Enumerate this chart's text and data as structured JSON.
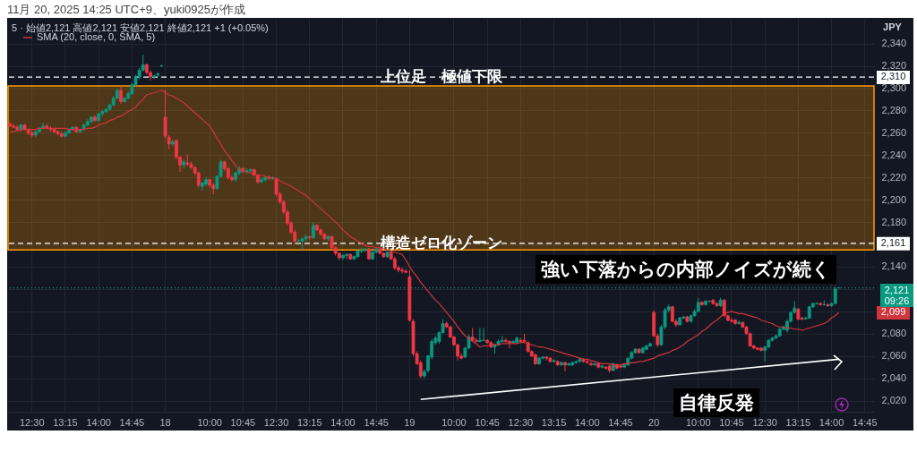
{
  "chart_data": {
    "type": "candlestick",
    "title": "11月 20, 2025 14:25 UTC+9、yuki0925が作成",
    "subtitle": "5 · 始値2,121 高値2,121 安値2,121 終値2,121 +1 (+0.05%)",
    "ylabel": "JPY",
    "categories": [
      null,
      null,
      null,
      null,
      null,
      null,
      "12:30",
      null,
      null,
      null,
      null,
      null,
      null,
      null,
      null,
      "13:15",
      null,
      null,
      null,
      null,
      null,
      null,
      null,
      null,
      "14:00",
      null,
      null,
      null,
      null,
      null,
      null,
      null,
      null,
      "14:45",
      null,
      null,
      null,
      null,
      null,
      null,
      null,
      null,
      "18",
      null,
      null,
      null,
      null,
      null,
      null,
      null,
      null,
      null,
      null,
      null,
      "10:00",
      null,
      null,
      null,
      null,
      null,
      null,
      null,
      null,
      "10:45",
      null,
      null,
      null,
      null,
      null,
      null,
      null,
      null,
      "12:30",
      null,
      null,
      null,
      null,
      null,
      null,
      null,
      null,
      "13:15",
      null,
      null,
      null,
      null,
      null,
      null,
      null,
      null,
      "14:00",
      null,
      null,
      null,
      null,
      null,
      null,
      null,
      null,
      "14:45",
      null,
      null,
      null,
      null,
      null,
      null,
      null,
      null,
      "19",
      null,
      null,
      null,
      null,
      null,
      null,
      null,
      null,
      null,
      null,
      null,
      "10:00",
      null,
      null,
      null,
      null,
      null,
      null,
      null,
      null,
      "10:45",
      null,
      null,
      null,
      null,
      null,
      null,
      null,
      null,
      "12:30",
      null,
      null,
      null,
      null,
      null,
      null,
      null,
      null,
      "13:15",
      null,
      null,
      null,
      null,
      null,
      null,
      null,
      null,
      "14:00",
      null,
      null,
      null,
      null,
      null,
      null,
      null,
      null,
      "14:45",
      null,
      null,
      null,
      null,
      null,
      null,
      null,
      null,
      "20",
      null,
      null,
      null,
      null,
      null,
      null,
      null,
      null,
      null,
      null,
      null,
      "10:00",
      null,
      null,
      null,
      null,
      null,
      null,
      null,
      null,
      "10:45",
      null,
      null,
      null,
      null,
      null,
      null,
      null,
      null,
      "12:30",
      null,
      null,
      null,
      null,
      null,
      null,
      null,
      null,
      "13:15",
      null,
      null,
      null,
      null,
      null,
      null,
      null,
      null,
      "14:00",
      null,
      null,
      null,
      null,
      null,
      null,
      null,
      null,
      "14:45",
      null,
      null
    ],
    "ohlc": [
      [
        2268,
        2270,
        2265,
        2266
      ],
      [
        2266,
        2268,
        2264,
        2265
      ],
      [
        2265,
        2267,
        2262,
        2263
      ],
      [
        2263,
        2268,
        2262,
        2267
      ],
      [
        2267,
        2268,
        2262,
        2263
      ],
      [
        2263,
        2264,
        2258,
        2260
      ],
      [
        2260,
        2262,
        2256,
        2258
      ],
      [
        2258,
        2262,
        2256,
        2261
      ],
      [
        2261,
        2265,
        2260,
        2264
      ],
      [
        2264,
        2269,
        2263,
        2266
      ],
      [
        2266,
        2268,
        2263,
        2264
      ],
      [
        2264,
        2266,
        2261,
        2263
      ],
      [
        2263,
        2264,
        2260,
        2261
      ],
      [
        2261,
        2262,
        2258,
        2259
      ],
      [
        2259,
        2261,
        2256,
        2257
      ],
      [
        2257,
        2261,
        2256,
        2260
      ],
      [
        2260,
        2264,
        2259,
        2263
      ],
      [
        2263,
        2266,
        2262,
        2265
      ],
      [
        2265,
        2266,
        2260,
        2261
      ],
      [
        2261,
        2264,
        2260,
        2263
      ],
      [
        2263,
        2268,
        2262,
        2267
      ],
      [
        2267,
        2272,
        2266,
        2270
      ],
      [
        2270,
        2275,
        2269,
        2274
      ],
      [
        2274,
        2276,
        2270,
        2271
      ],
      [
        2271,
        2278,
        2270,
        2277
      ],
      [
        2277,
        2280,
        2275,
        2279
      ],
      [
        2279,
        2282,
        2278,
        2281
      ],
      [
        2281,
        2286,
        2280,
        2285
      ],
      [
        2285,
        2293,
        2284,
        2291
      ],
      [
        2291,
        2300,
        2290,
        2298
      ],
      [
        2298,
        2302,
        2286,
        2288
      ],
      [
        2288,
        2292,
        2287,
        2291
      ],
      [
        2291,
        2297,
        2290,
        2295
      ],
      [
        2295,
        2305,
        2294,
        2303
      ],
      [
        2303,
        2312,
        2302,
        2310
      ],
      [
        2310,
        2318,
        2308,
        2316
      ],
      [
        2316,
        2330,
        2315,
        2321
      ],
      [
        2321,
        2322,
        2312,
        2314
      ],
      [
        2314,
        2316,
        2307,
        2310
      ],
      [
        2310,
        2312,
        2308,
        2311
      ],
      [
        2312,
        2314,
        2310,
        2313
      ],
      [
        2320,
        2321,
        2319,
        2320
      ],
      [
        2274,
        2298,
        2255,
        2257
      ],
      [
        2256,
        2258,
        2245,
        2250
      ],
      [
        2250,
        2254,
        2248,
        2252
      ],
      [
        2253,
        2254,
        2236,
        2238
      ],
      [
        2238,
        2239,
        2225,
        2231
      ],
      [
        2231,
        2236,
        2228,
        2234
      ],
      [
        2233,
        2241,
        2230,
        2232
      ],
      [
        2232,
        2234,
        2228,
        2229
      ],
      [
        2229,
        2230,
        2222,
        2224
      ],
      [
        2224,
        2225,
        2211,
        2213
      ],
      [
        2212,
        2216,
        2208,
        2215
      ],
      [
        2214,
        2220,
        2212,
        2218
      ],
      [
        2218,
        2219,
        2211,
        2213
      ],
      [
        2213,
        2215,
        2205,
        2210
      ],
      [
        2210,
        2222,
        2209,
        2221
      ],
      [
        2221,
        2236,
        2220,
        2234
      ],
      [
        2234,
        2235,
        2226,
        2228
      ],
      [
        2228,
        2229,
        2218,
        2220
      ],
      [
        2220,
        2222,
        2216,
        2218
      ],
      [
        2218,
        2225,
        2216,
        2224
      ],
      [
        2224,
        2230,
        2222,
        2228
      ],
      [
        2228,
        2229,
        2224,
        2225
      ],
      [
        2225,
        2228,
        2223,
        2226
      ],
      [
        2226,
        2228,
        2224,
        2227
      ],
      [
        2227,
        2228,
        2221,
        2222
      ],
      [
        2222,
        2223,
        2214,
        2216
      ],
      [
        2216,
        2220,
        2215,
        2218
      ],
      [
        2218,
        2221,
        2216,
        2220
      ],
      [
        2220,
        2222,
        2218,
        2219
      ],
      [
        2219,
        2221,
        2218,
        2220
      ],
      [
        2219,
        2220,
        2203,
        2205
      ],
      [
        2205,
        2207,
        2196,
        2198
      ],
      [
        2198,
        2200,
        2187,
        2189
      ],
      [
        2189,
        2191,
        2177,
        2179
      ],
      [
        2179,
        2181,
        2169,
        2171
      ],
      [
        2171,
        2173,
        2160,
        2163
      ],
      [
        2163,
        2165,
        2161,
        2163
      ],
      [
        2163,
        2166,
        2155,
        2165
      ],
      [
        2165,
        2169,
        2163,
        2167
      ],
      [
        2167,
        2168,
        2164,
        2166
      ],
      [
        2166,
        2180,
        2165,
        2177
      ],
      [
        2177,
        2178,
        2172,
        2173
      ],
      [
        2173,
        2174,
        2168,
        2169
      ],
      [
        2169,
        2170,
        2164,
        2165
      ],
      [
        2165,
        2168,
        2163,
        2167
      ],
      [
        2167,
        2168,
        2155,
        2157
      ],
      [
        2157,
        2158,
        2150,
        2152
      ],
      [
        2152,
        2153,
        2146,
        2148
      ],
      [
        2148,
        2151,
        2146,
        2150
      ],
      [
        2150,
        2152,
        2147,
        2151
      ],
      [
        2151,
        2152,
        2146,
        2147
      ],
      [
        2147,
        2150,
        2146,
        2149
      ],
      [
        2149,
        2155,
        2148,
        2154
      ],
      [
        2154,
        2157,
        2152,
        2155
      ],
      [
        2155,
        2157,
        2153,
        2156
      ],
      [
        2156,
        2157,
        2146,
        2147
      ],
      [
        2147,
        2154,
        2146,
        2153
      ],
      [
        2153,
        2157,
        2152,
        2156
      ],
      [
        2156,
        2158,
        2151,
        2152
      ],
      [
        2152,
        2153,
        2148,
        2149
      ],
      [
        2149,
        2154,
        2148,
        2153
      ],
      [
        2153,
        2154,
        2146,
        2147
      ],
      [
        2147,
        2149,
        2137,
        2139
      ],
      [
        2139,
        2141,
        2135,
        2137
      ],
      [
        2137,
        2139,
        2134,
        2136
      ],
      [
        2136,
        2138,
        2134,
        2135
      ],
      [
        2131,
        2137,
        2091,
        2092
      ],
      [
        2091,
        2093,
        2060,
        2062
      ],
      [
        2062,
        2064,
        2052,
        2053
      ],
      [
        2054,
        2056,
        2040,
        2042
      ],
      [
        2042,
        2048,
        2040,
        2046
      ],
      [
        2047,
        2061,
        2045,
        2060
      ],
      [
        2059,
        2075,
        2057,
        2073
      ],
      [
        2072,
        2078,
        2070,
        2076
      ],
      [
        2073,
        2082,
        2071,
        2081
      ],
      [
        2081,
        2093,
        2080,
        2089
      ],
      [
        2089,
        2091,
        2085,
        2086
      ],
      [
        2086,
        2087,
        2076,
        2077
      ],
      [
        2077,
        2078,
        2069,
        2070
      ],
      [
        2070,
        2071,
        2056,
        2060
      ],
      [
        2060,
        2062,
        2057,
        2058
      ],
      [
        2059,
        2068,
        2058,
        2067
      ],
      [
        2067,
        2079,
        2066,
        2077
      ],
      [
        2077,
        2085,
        2073,
        2074
      ],
      [
        2074,
        2076,
        2072,
        2073
      ],
      [
        2073,
        2085,
        2072,
        2074
      ],
      [
        2074,
        2085,
        2073,
        2074
      ],
      [
        2074,
        2075,
        2071,
        2072
      ],
      [
        2072,
        2073,
        2067,
        2068
      ],
      [
        2068,
        2071,
        2062,
        2070
      ],
      [
        2070,
        2075,
        2069,
        2073
      ],
      [
        2073,
        2078,
        2072,
        2074
      ],
      [
        2074,
        2076,
        2072,
        2073
      ],
      [
        2073,
        2074,
        2067,
        2072
      ],
      [
        2072,
        2074,
        2071,
        2073
      ],
      [
        2072,
        2077,
        2071,
        2076
      ],
      [
        2074,
        2076,
        2072,
        2073
      ],
      [
        2074,
        2080,
        2072,
        2073
      ],
      [
        2072,
        2073,
        2063,
        2064
      ],
      [
        2064,
        2065,
        2059,
        2060
      ],
      [
        2061,
        2062,
        2052,
        2053
      ],
      [
        2053,
        2059,
        2052,
        2058
      ],
      [
        2058,
        2060,
        2057,
        2059
      ],
      [
        2059,
        2060,
        2056,
        2058
      ],
      [
        2058,
        2059,
        2054,
        2055
      ],
      [
        2055,
        2057,
        2054,
        2056
      ],
      [
        2055,
        2056,
        2051,
        2052
      ],
      [
        2052,
        2055,
        2051,
        2054
      ],
      [
        2054,
        2055,
        2046,
        2052
      ],
      [
        2052,
        2054,
        2051,
        2053
      ],
      [
        2052,
        2055,
        2051,
        2054
      ],
      [
        2054,
        2056,
        2053,
        2055
      ],
      [
        2055,
        2058,
        2054,
        2057
      ],
      [
        2057,
        2058,
        2054,
        2055
      ],
      [
        2055,
        2056,
        2053,
        2054
      ],
      [
        2053,
        2055,
        2051,
        2052
      ],
      [
        2052,
        2054,
        2051,
        2053
      ],
      [
        2053,
        2054,
        2049,
        2050
      ],
      [
        2050,
        2052,
        2049,
        2051
      ],
      [
        2050,
        2051,
        2048,
        2049
      ],
      [
        2051,
        2052,
        2045,
        2047
      ],
      [
        2047,
        2054,
        2046,
        2053
      ],
      [
        2052,
        2053,
        2048,
        2049
      ],
      [
        2051,
        2052,
        2049,
        2050
      ],
      [
        2050,
        2053,
        2049,
        2052
      ],
      [
        2052,
        2059,
        2051,
        2058
      ],
      [
        2058,
        2064,
        2057,
        2063
      ],
      [
        2063,
        2067,
        2062,
        2066
      ],
      [
        2066,
        2067,
        2062,
        2063
      ],
      [
        2063,
        2068,
        2062,
        2067
      ],
      [
        2066,
        2070,
        2065,
        2069
      ],
      [
        2069,
        2072,
        2068,
        2071
      ],
      [
        2099,
        2101,
        2077,
        2078
      ],
      [
        2078,
        2080,
        2068,
        2070
      ],
      [
        2070,
        2088,
        2069,
        2086
      ],
      [
        2086,
        2103,
        2084,
        2101
      ],
      [
        2101,
        2106,
        2099,
        2104
      ],
      [
        2104,
        2105,
        2090,
        2091
      ],
      [
        2091,
        2093,
        2086,
        2088
      ],
      [
        2088,
        2095,
        2087,
        2094
      ],
      [
        2094,
        2096,
        2093,
        2095
      ],
      [
        2095,
        2096,
        2090,
        2091
      ],
      [
        2091,
        2097,
        2090,
        2096
      ],
      [
        2096,
        2102,
        2095,
        2100
      ],
      [
        2100,
        2112,
        2099,
        2108
      ],
      [
        2108,
        2109,
        2105,
        2106
      ],
      [
        2106,
        2110,
        2105,
        2109
      ],
      [
        2109,
        2110,
        2108,
        2109
      ],
      [
        2110,
        2111,
        2106,
        2107
      ],
      [
        2107,
        2108,
        2104,
        2105
      ],
      [
        2105,
        2112,
        2104,
        2110
      ],
      [
        2110,
        2111,
        2095,
        2096
      ],
      [
        2096,
        2097,
        2091,
        2092
      ],
      [
        2092,
        2094,
        2090,
        2091
      ],
      [
        2092,
        2093,
        2088,
        2089
      ],
      [
        2089,
        2092,
        2088,
        2090
      ],
      [
        2090,
        2091,
        2085,
        2086
      ],
      [
        2086,
        2087,
        2079,
        2080
      ],
      [
        2080,
        2081,
        2068,
        2069
      ],
      [
        2069,
        2070,
        2066,
        2067
      ],
      [
        2067,
        2068,
        2065,
        2066
      ],
      [
        2067,
        2068,
        2064,
        2065
      ],
      [
        2065,
        2069,
        2055,
        2068
      ],
      [
        2068,
        2075,
        2067,
        2074
      ],
      [
        2074,
        2077,
        2073,
        2076
      ],
      [
        2076,
        2079,
        2075,
        2078
      ],
      [
        2078,
        2085,
        2077,
        2084
      ],
      [
        2084,
        2087,
        2083,
        2086
      ],
      [
        2083,
        2093,
        2081,
        2091
      ],
      [
        2091,
        2100,
        2090,
        2099
      ],
      [
        2099,
        2109,
        2098,
        2103
      ],
      [
        2102,
        2103,
        2092,
        2093
      ],
      [
        2094,
        2095,
        2092,
        2093
      ],
      [
        2093,
        2095,
        2093,
        2094
      ],
      [
        2094,
        2105,
        2093,
        2104
      ],
      [
        2104,
        2108,
        2103,
        2107
      ],
      [
        2107,
        2108,
        2106,
        2107
      ],
      [
        2107,
        2108,
        2105,
        2106
      ],
      [
        2106,
        2110,
        2105,
        2106
      ],
      [
        2106,
        2107,
        2104,
        2105
      ],
      [
        2105,
        2108,
        2104,
        2107
      ],
      [
        2107,
        2122,
        2106,
        2120
      ],
      [
        2121,
        2121,
        2121,
        2121
      ],
      null,
      null,
      null,
      null,
      null,
      null,
      null,
      null,
      null
    ],
    "series": [
      {
        "name": "SMA (20, close, 0, SMA, 5)",
        "type": "line",
        "color": "#d0343c",
        "values": [
          2261,
          2261,
          2262,
          2262,
          2263,
          2263,
          2263,
          2263,
          2264,
          2264,
          2264,
          2264,
          2264,
          2264,
          2264,
          2264,
          2263,
          2263,
          2263,
          2263,
          2263,
          2264,
          2264,
          2265,
          2267,
          2268,
          2269,
          2271,
          2272,
          2274,
          2275,
          2277,
          2279,
          2281,
          2283,
          2287,
          2290,
          2294,
          2295,
          2296,
          2297,
          2298,
          2296,
          2294,
          2293,
          2291,
          2289,
          2287,
          2284,
          2281,
          2278,
          2275,
          2272,
          2269,
          2266,
          2261,
          2255,
          2250,
          2244,
          2240,
          2235,
          2231,
          2227,
          2226,
          2225,
          2224,
          2223,
          2222,
          2222,
          2221,
          2220,
          2220,
          2219,
          2217,
          2215,
          2214,
          2212,
          2210,
          2208,
          2206,
          2204,
          2201,
          2198,
          2195,
          2192,
          2189,
          2186,
          2183,
          2180,
          2177,
          2173,
          2170,
          2167,
          2165,
          2163,
          2161,
          2159,
          2158,
          2158,
          2157,
          2157,
          2156,
          2155,
          2154,
          2153,
          2152,
          2151,
          2146,
          2140,
          2135,
          2131,
          2126,
          2122,
          2118,
          2114,
          2110,
          2107,
          2103,
          2099,
          2095,
          2091,
          2086,
          2082,
          2078,
          2076,
          2073,
          2071,
          2068,
          2069,
          2069,
          2070,
          2070,
          2070,
          2071,
          2071,
          2071,
          2071,
          2071,
          2072,
          2072,
          2071,
          2070,
          2069,
          2068,
          2068,
          2067,
          2066,
          2065,
          2064,
          2063,
          2062,
          2061,
          2060,
          2059,
          2058,
          2057,
          2057,
          2056,
          2055,
          2054,
          2053,
          2053,
          2053,
          2052,
          2052,
          2052,
          2053,
          2053,
          2054,
          2054,
          2055,
          2055,
          2056,
          2057,
          2058,
          2060,
          2061,
          2062,
          2063,
          2065,
          2066,
          2068,
          2070,
          2073,
          2075,
          2077,
          2079,
          2082,
          2084,
          2087,
          2090,
          2092,
          2095,
          2098,
          2099,
          2100,
          2099,
          2098,
          2098,
          2097,
          2096,
          2095,
          2094,
          2092,
          2091,
          2090,
          2089,
          2087,
          2086,
          2086,
          2085,
          2085,
          2084,
          2084,
          2083,
          2084,
          2085,
          2086,
          2087,
          2088,
          2089,
          2091,
          2094,
          2096,
          2099,
          null,
          null,
          null,
          null,
          null,
          null,
          null,
          null,
          null
        ]
      },
      {
        "type": "line",
        "color": "#ffffff",
        "values": [
          null,
          null,
          null,
          null,
          null,
          null,
          null,
          null,
          null,
          null,
          null,
          null,
          null,
          null,
          null,
          null,
          null,
          null,
          null,
          null,
          null,
          null,
          null,
          null,
          null,
          null,
          null,
          null,
          null,
          null,
          null,
          null,
          null,
          null,
          null,
          null,
          null,
          null,
          null,
          null,
          null,
          null,
          null,
          null,
          null,
          null,
          null,
          null,
          null,
          null,
          null,
          null,
          null,
          null,
          null,
          null,
          null,
          null,
          null,
          null,
          null,
          null,
          null,
          null,
          null,
          null,
          null,
          null,
          null,
          null,
          null,
          null,
          null,
          null,
          null,
          null,
          null,
          null,
          null,
          null,
          null,
          null,
          null,
          null,
          null,
          null,
          null,
          null,
          null,
          null,
          null,
          null,
          null,
          null,
          null,
          null,
          null,
          null,
          null,
          null,
          null,
          null,
          null,
          null,
          null,
          null,
          null,
          null,
          null,
          null,
          null,
          2021,
          null,
          null,
          null,
          null,
          null,
          null,
          null,
          null,
          null,
          null,
          null,
          null,
          null,
          null,
          null,
          null,
          null,
          null,
          null,
          null,
          null,
          null,
          null,
          null,
          null,
          null,
          null,
          null,
          null,
          null,
          null,
          null,
          null,
          null,
          null,
          null,
          null,
          null,
          null,
          null,
          null,
          null,
          null,
          null,
          null,
          null,
          null,
          null,
          null,
          null,
          null,
          null,
          null,
          null,
          null,
          null,
          null,
          null,
          null,
          null,
          null,
          null,
          null,
          null,
          null,
          null,
          null,
          null,
          null,
          null,
          null,
          null,
          null,
          null,
          null,
          null,
          null,
          null,
          null,
          null,
          null,
          null,
          null,
          null,
          null,
          null,
          null,
          null,
          null,
          null,
          null,
          null,
          null,
          null,
          null,
          null,
          null,
          null,
          null,
          null,
          null,
          null,
          null,
          null,
          null,
          null,
          null,
          null,
          null,
          null,
          null,
          null,
          2057,
          null,
          null,
          null,
          null,
          null,
          null,
          null,
          null,
          null
        ]
      }
    ],
    "ylim": [
      2010,
      2363
    ],
    "yticks": [
      {
        "value": 2020,
        "label": "2,020"
      },
      {
        "value": 2040,
        "label": "2,040"
      },
      {
        "value": 2060,
        "label": "2,060"
      },
      {
        "value": 2080,
        "label": "2,080"
      },
      {
        "value": 2100,
        "label": null
      },
      {
        "value": 2120,
        "label": null
      },
      {
        "value": 2140,
        "label": "2,140"
      },
      {
        "value": 2160,
        "label": null
      },
      {
        "value": 2180,
        "label": "2,180"
      },
      {
        "value": 2200,
        "label": "2,200"
      },
      {
        "value": 2220,
        "label": "2,220"
      },
      {
        "value": 2240,
        "label": "2,240"
      },
      {
        "value": 2260,
        "label": "2,260"
      },
      {
        "value": 2280,
        "label": "2,280"
      },
      {
        "value": 2300,
        "label": "2,300"
      },
      {
        "value": 2320,
        "label": "2,320"
      },
      {
        "value": 2340,
        "label": "2,340"
      }
    ],
    "grid": true,
    "legend": "top left",
    "bands": [
      {
        "axis": "y",
        "from": 2155,
        "to": 2302,
        "color": "#ff9800"
      }
    ],
    "ref_lines": [
      {
        "axis": "y",
        "value": 2310,
        "label": "上位足　極値下限",
        "color": "#ffffff",
        "line_style": "dashed"
      },
      {
        "axis": "y",
        "value": 2161,
        "label": "構造ゼロ化ゾーン",
        "color": "#ffffff",
        "line_style": "dashed"
      },
      {
        "axis": "y",
        "value": 2121,
        "color": "#089981",
        "line_style": "dotted"
      }
    ],
    "annotations": [
      "強い下落からの内部ノイズが続く",
      "自律反発",
      "2,121 09:26",
      {
        "text": "2,310",
        "y": 2310
      },
      {
        "text": "2,161",
        "y": 2161
      },
      {
        "text": "2,099",
        "y": 2099
      }
    ]
  }
}
